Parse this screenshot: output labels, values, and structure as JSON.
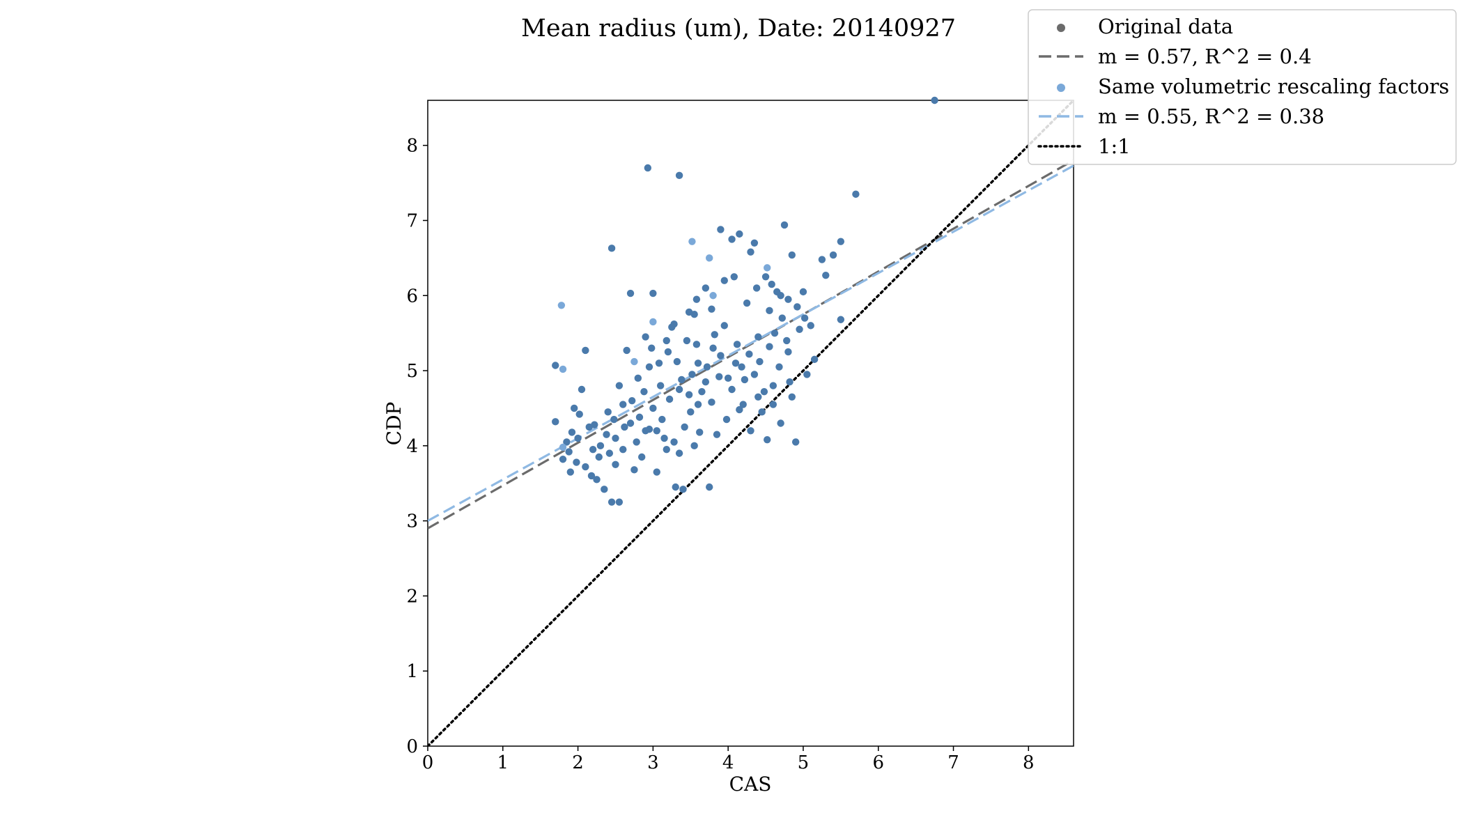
{
  "chart_data": {
    "type": "scatter",
    "title": "Mean radius (um), Date: 20140927",
    "xlabel": "CAS",
    "ylabel": "CDP",
    "xlim": [
      0,
      8.6
    ],
    "ylim": [
      0,
      8.6
    ],
    "xticks": [
      "0",
      "1",
      "2",
      "3",
      "4",
      "5",
      "6",
      "7",
      "8"
    ],
    "yticks": [
      "0",
      "1",
      "2",
      "3",
      "4",
      "5",
      "6",
      "7",
      "8"
    ],
    "grid": false,
    "legend_position": "upper-right (outside plot area)",
    "series": [
      {
        "name": "Original data",
        "kind": "scatter",
        "color": "#6b6b6b",
        "points": [
          [
            1.7,
            5.07
          ],
          [
            1.7,
            4.32
          ],
          [
            1.8,
            3.82
          ],
          [
            1.85,
            4.05
          ],
          [
            1.9,
            3.65
          ],
          [
            1.95,
            4.5
          ],
          [
            2.0,
            4.1
          ],
          [
            2.05,
            4.75
          ],
          [
            2.1,
            5.27
          ],
          [
            2.1,
            3.72
          ],
          [
            2.15,
            4.25
          ],
          [
            2.2,
            3.95
          ],
          [
            2.25,
            3.55
          ],
          [
            2.3,
            4.0
          ],
          [
            2.35,
            3.42
          ],
          [
            2.4,
            4.45
          ],
          [
            2.45,
            6.63
          ],
          [
            2.45,
            3.25
          ],
          [
            2.5,
            3.75
          ],
          [
            2.5,
            4.1
          ],
          [
            2.55,
            3.25
          ],
          [
            2.6,
            4.55
          ],
          [
            2.6,
            3.95
          ],
          [
            2.65,
            5.27
          ],
          [
            2.7,
            6.03
          ],
          [
            2.7,
            4.3
          ],
          [
            2.75,
            3.68
          ],
          [
            2.8,
            4.9
          ],
          [
            2.85,
            3.85
          ],
          [
            2.9,
            5.45
          ],
          [
            2.9,
            4.2
          ],
          [
            2.93,
            7.7
          ],
          [
            2.95,
            5.05
          ],
          [
            3.0,
            6.03
          ],
          [
            3.0,
            4.5
          ],
          [
            3.05,
            3.65
          ],
          [
            3.1,
            4.8
          ],
          [
            3.15,
            4.1
          ],
          [
            3.2,
            5.25
          ],
          [
            3.25,
            5.58
          ],
          [
            3.3,
            3.45
          ],
          [
            3.35,
            4.75
          ],
          [
            3.35,
            7.6
          ],
          [
            3.4,
            3.42
          ],
          [
            3.45,
            5.4
          ],
          [
            3.5,
            4.45
          ],
          [
            3.55,
            5.75
          ],
          [
            3.6,
            5.1
          ],
          [
            3.62,
            4.18
          ],
          [
            3.7,
            4.85
          ],
          [
            3.75,
            3.45
          ],
          [
            3.8,
            5.3
          ],
          [
            3.85,
            4.15
          ],
          [
            3.9,
            6.88
          ],
          [
            3.95,
            5.6
          ],
          [
            4.0,
            4.9
          ],
          [
            4.05,
            6.75
          ],
          [
            4.1,
            5.1
          ],
          [
            4.15,
            6.82
          ],
          [
            4.2,
            4.55
          ],
          [
            4.25,
            5.9
          ],
          [
            4.3,
            6.58
          ],
          [
            4.3,
            4.2
          ],
          [
            4.35,
            6.7
          ],
          [
            4.4,
            5.45
          ],
          [
            4.45,
            4.45
          ],
          [
            4.5,
            6.25
          ],
          [
            4.52,
            4.08
          ],
          [
            4.55,
            5.8
          ],
          [
            4.6,
            4.8
          ],
          [
            4.65,
            6.05
          ],
          [
            4.7,
            4.3
          ],
          [
            4.75,
            6.94
          ],
          [
            4.8,
            5.25
          ],
          [
            4.85,
            6.54
          ],
          [
            4.9,
            4.05
          ],
          [
            4.95,
            5.55
          ],
          [
            5.0,
            6.05
          ],
          [
            5.05,
            4.95
          ],
          [
            5.1,
            5.6
          ],
          [
            5.15,
            5.15
          ],
          [
            5.25,
            6.48
          ],
          [
            5.3,
            6.27
          ],
          [
            5.4,
            6.54
          ],
          [
            5.5,
            6.72
          ],
          [
            5.5,
            5.68
          ],
          [
            5.7,
            7.35
          ],
          [
            6.75,
            8.6
          ],
          [
            3.6,
            4.55
          ],
          [
            3.9,
            5.2
          ],
          [
            4.05,
            4.75
          ],
          [
            4.12,
            5.35
          ],
          [
            4.18,
            5.05
          ],
          [
            4.22,
            4.88
          ],
          [
            4.28,
            5.22
          ],
          [
            4.35,
            4.95
          ],
          [
            4.42,
            5.12
          ],
          [
            4.48,
            4.72
          ],
          [
            4.55,
            5.32
          ],
          [
            4.62,
            5.5
          ],
          [
            4.68,
            5.05
          ],
          [
            4.72,
            5.7
          ],
          [
            4.78,
            5.4
          ],
          [
            4.82,
            4.85
          ],
          [
            3.05,
            4.2
          ],
          [
            3.12,
            4.35
          ],
          [
            3.18,
            3.95
          ],
          [
            3.22,
            4.62
          ],
          [
            3.28,
            4.05
          ],
          [
            3.32,
            5.12
          ],
          [
            3.38,
            4.88
          ],
          [
            3.42,
            4.25
          ],
          [
            3.48,
            4.68
          ],
          [
            3.52,
            4.95
          ],
          [
            3.58,
            5.35
          ],
          [
            3.65,
            4.72
          ],
          [
            3.72,
            5.05
          ],
          [
            3.78,
            4.58
          ],
          [
            3.82,
            5.48
          ],
          [
            3.88,
            4.92
          ],
          [
            2.72,
            4.6
          ],
          [
            2.78,
            4.05
          ],
          [
            2.82,
            4.38
          ],
          [
            2.88,
            4.72
          ],
          [
            2.95,
            4.22
          ],
          [
            2.62,
            4.25
          ],
          [
            2.55,
            4.8
          ],
          [
            2.48,
            4.35
          ],
          [
            2.42,
            3.9
          ],
          [
            2.38,
            4.15
          ],
          [
            2.28,
            3.85
          ],
          [
            2.22,
            4.28
          ],
          [
            2.18,
            3.6
          ],
          [
            2.02,
            4.42
          ],
          [
            1.98,
            3.78
          ],
          [
            1.92,
            4.18
          ],
          [
            1.88,
            3.92
          ],
          [
            3.95,
            6.2
          ],
          [
            4.08,
            6.25
          ],
          [
            4.38,
            6.1
          ],
          [
            4.58,
            6.15
          ],
          [
            4.7,
            6.0
          ],
          [
            4.8,
            5.95
          ],
          [
            4.92,
            5.85
          ],
          [
            5.02,
            5.7
          ],
          [
            3.7,
            6.1
          ],
          [
            3.78,
            5.82
          ],
          [
            3.58,
            5.95
          ],
          [
            3.48,
            5.78
          ],
          [
            3.28,
            5.62
          ],
          [
            3.18,
            5.4
          ],
          [
            3.08,
            5.1
          ],
          [
            2.98,
            5.3
          ],
          [
            4.85,
            4.65
          ],
          [
            4.6,
            4.55
          ],
          [
            4.4,
            4.65
          ],
          [
            4.15,
            4.48
          ],
          [
            3.98,
            4.35
          ],
          [
            3.55,
            4.0
          ],
          [
            3.35,
            3.9
          ]
        ]
      },
      {
        "name": "m = 0.57, R^2 = 0.4",
        "kind": "line",
        "style": "dashed",
        "color": "#6b6b6b",
        "slope": 0.57,
        "intercept": 2.9,
        "x_range": [
          0,
          8.6
        ]
      },
      {
        "name": "Same volumetric rescaling factors",
        "kind": "scatter",
        "color": "#7aa8d8",
        "points": [
          [
            1.78,
            5.87
          ],
          [
            1.8,
            5.02
          ],
          [
            1.8,
            3.98
          ],
          [
            3.0,
            5.65
          ],
          [
            3.52,
            6.72
          ],
          [
            3.75,
            6.5
          ],
          [
            3.8,
            6.0
          ],
          [
            4.52,
            6.37
          ],
          [
            2.75,
            5.12
          ]
        ]
      },
      {
        "name": "m = 0.55, R^2 = 0.38",
        "kind": "line",
        "style": "dashed",
        "color": "#8fb9e3",
        "slope": 0.55,
        "intercept": 3.0,
        "x_range": [
          0,
          8.6
        ]
      },
      {
        "name": "1:1",
        "kind": "line",
        "style": "dotted",
        "color": "#000000",
        "slope": 1,
        "intercept": 0,
        "x_range": [
          0,
          8.6
        ]
      }
    ],
    "overlap_color": "#4a7aab"
  }
}
